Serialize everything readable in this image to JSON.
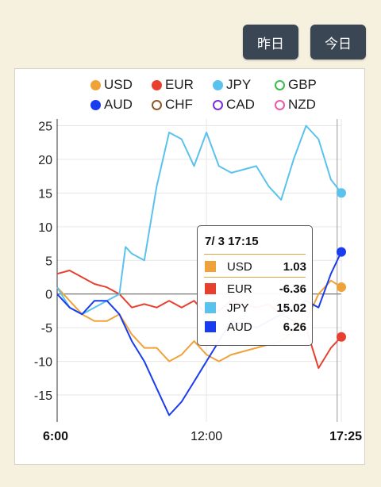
{
  "buttons": {
    "yesterday": "昨日",
    "today": "今日"
  },
  "legend": [
    {
      "name": "USD",
      "color": "#f0a23a",
      "hollow": false
    },
    {
      "name": "EUR",
      "color": "#e8402f",
      "hollow": false
    },
    {
      "name": "JPY",
      "color": "#5bc2ee",
      "hollow": false
    },
    {
      "name": "GBP",
      "color": "#3fb94a",
      "hollow": true
    },
    {
      "name": "AUD",
      "color": "#1a3cf0",
      "hollow": false
    },
    {
      "name": "CHF",
      "color": "#8a5a2b",
      "hollow": true
    },
    {
      "name": "CAD",
      "color": "#7b2fd9",
      "hollow": true
    },
    {
      "name": "NZD",
      "color": "#ea5aa6",
      "hollow": true
    }
  ],
  "tooltip": {
    "title": "7/ 3 17:15",
    "rows": [
      {
        "name": "USD",
        "value": "1.03",
        "color": "#f0a23a"
      },
      {
        "name": "EUR",
        "value": "-6.36",
        "color": "#e8402f"
      },
      {
        "name": "JPY",
        "value": "15.02",
        "color": "#5bc2ee"
      },
      {
        "name": "AUD",
        "value": "6.26",
        "color": "#1a3cf0"
      }
    ]
  },
  "chart_data": {
    "type": "line",
    "x_labels": [
      "6:00",
      "12:00",
      "17:25"
    ],
    "xlim": [
      "6:00",
      "17:25"
    ],
    "ylim": [
      -19,
      26
    ],
    "y_ticks": [
      25,
      20,
      15,
      10,
      5,
      0,
      -5,
      -10,
      -15
    ],
    "grid": true,
    "legend_position": "top",
    "series": [
      {
        "name": "USD",
        "color": "#f0a23a",
        "points": [
          [
            "6:00",
            1
          ],
          [
            "6:30",
            -1
          ],
          [
            "7:00",
            -3
          ],
          [
            "7:30",
            -4
          ],
          [
            "8:00",
            -4
          ],
          [
            "8:30",
            -3
          ],
          [
            "9:00",
            -6
          ],
          [
            "9:30",
            -8
          ],
          [
            "10:00",
            -8
          ],
          [
            "10:30",
            -10
          ],
          [
            "11:00",
            -9
          ],
          [
            "11:30",
            -7
          ],
          [
            "12:00",
            -9
          ],
          [
            "12:30",
            -10
          ],
          [
            "13:00",
            -9
          ],
          [
            "14:00",
            -8
          ],
          [
            "15:00",
            -7
          ],
          [
            "16:00",
            -4
          ],
          [
            "16:30",
            0
          ],
          [
            "17:00",
            2
          ],
          [
            "17:25",
            1.03
          ]
        ]
      },
      {
        "name": "EUR",
        "color": "#e8402f",
        "points": [
          [
            "6:00",
            3
          ],
          [
            "6:30",
            3.5
          ],
          [
            "7:00",
            2.5
          ],
          [
            "7:30",
            1.5
          ],
          [
            "8:00",
            1
          ],
          [
            "8:30",
            0
          ],
          [
            "9:00",
            -2
          ],
          [
            "9:30",
            -1.5
          ],
          [
            "10:00",
            -2
          ],
          [
            "10:30",
            -1
          ],
          [
            "11:00",
            -2
          ],
          [
            "11:30",
            -1
          ],
          [
            "12:00",
            -3
          ],
          [
            "12:30",
            -2.5
          ],
          [
            "13:00",
            -1
          ],
          [
            "14:00",
            -2
          ],
          [
            "14:30",
            -1.5
          ],
          [
            "15:00",
            -3
          ],
          [
            "16:00",
            -5
          ],
          [
            "16:30",
            -11
          ],
          [
            "17:00",
            -8
          ],
          [
            "17:25",
            -6.36
          ]
        ]
      },
      {
        "name": "JPY",
        "color": "#5bc2ee",
        "points": [
          [
            "6:00",
            1
          ],
          [
            "6:30",
            -2
          ],
          [
            "7:00",
            -3
          ],
          [
            "7:30",
            -2
          ],
          [
            "8:00",
            -1
          ],
          [
            "8:30",
            0
          ],
          [
            "8:45",
            7
          ],
          [
            "9:00",
            6
          ],
          [
            "9:30",
            5
          ],
          [
            "10:00",
            16
          ],
          [
            "10:30",
            24
          ],
          [
            "11:00",
            23
          ],
          [
            "11:30",
            19
          ],
          [
            "12:00",
            24
          ],
          [
            "12:30",
            19
          ],
          [
            "13:00",
            18
          ],
          [
            "14:00",
            19
          ],
          [
            "14:30",
            16
          ],
          [
            "15:00",
            14
          ],
          [
            "15:30",
            20
          ],
          [
            "16:00",
            25
          ],
          [
            "16:30",
            23
          ],
          [
            "17:00",
            17
          ],
          [
            "17:25",
            15.02
          ]
        ]
      },
      {
        "name": "AUD",
        "color": "#1a3cf0",
        "points": [
          [
            "6:00",
            0
          ],
          [
            "6:30",
            -2
          ],
          [
            "7:00",
            -3
          ],
          [
            "7:30",
            -1
          ],
          [
            "8:00",
            -1
          ],
          [
            "8:30",
            -3
          ],
          [
            "9:00",
            -7
          ],
          [
            "9:30",
            -10
          ],
          [
            "10:00",
            -14
          ],
          [
            "10:30",
            -18
          ],
          [
            "11:00",
            -16
          ],
          [
            "11:30",
            -13
          ],
          [
            "12:00",
            -10
          ],
          [
            "12:30",
            -7
          ],
          [
            "13:00",
            -4
          ],
          [
            "14:00",
            -5
          ],
          [
            "15:00",
            -3
          ],
          [
            "16:00",
            -1
          ],
          [
            "16:30",
            -2
          ],
          [
            "17:00",
            3
          ],
          [
            "17:25",
            6.26
          ]
        ]
      }
    ]
  }
}
